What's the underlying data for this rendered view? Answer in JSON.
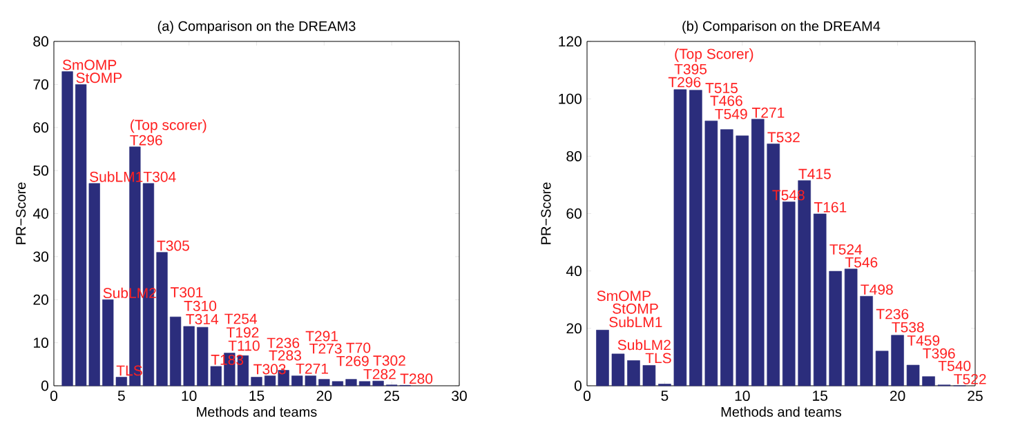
{
  "chart_data": [
    {
      "type": "bar",
      "title": "(a) Comparison on the DREAM3",
      "xlabel": "Methods and teams",
      "ylabel": "PR−Score",
      "color": "#2b2d7c",
      "x": [
        1,
        2,
        3,
        4,
        5,
        6,
        7,
        8,
        9,
        10,
        11,
        12,
        13,
        14,
        15,
        16,
        17,
        18,
        19,
        20,
        21,
        22,
        23,
        24,
        25,
        26
      ],
      "values": [
        73,
        70,
        47,
        20,
        2,
        55.5,
        47,
        31,
        16,
        13.8,
        13.6,
        4.5,
        7.6,
        7,
        2,
        2.3,
        3.6,
        2.3,
        2.3,
        1.5,
        1,
        1.5,
        1,
        1.1,
        0.2,
        0.1
      ],
      "xlim": [
        0,
        30
      ],
      "ylim": [
        0,
        80
      ],
      "xticks": [
        0,
        5,
        10,
        15,
        20,
        25,
        30
      ],
      "yticks": [
        0,
        10,
        20,
        30,
        40,
        50,
        60,
        70,
        80
      ],
      "annotations": [
        {
          "text": "SmOMP",
          "x": 1,
          "y": 73
        },
        {
          "text": "StOMP",
          "x": 2,
          "y": 70
        },
        {
          "text": "SubLM1",
          "x": 3,
          "y": 47
        },
        {
          "text": "SubLM2",
          "x": 4,
          "y": 20
        },
        {
          "text": "TLS",
          "x": 5,
          "y": 2
        },
        {
          "text": "T296",
          "x": 6,
          "y": 55.5
        },
        {
          "text": "(Top scorer)",
          "x": 6,
          "y": 55.5
        },
        {
          "text": "T304",
          "x": 7,
          "y": 47
        },
        {
          "text": "T305",
          "x": 8,
          "y": 31
        },
        {
          "text": "T301",
          "x": 9,
          "y": 16
        },
        {
          "text": "T310",
          "x": 10,
          "y": 13.8
        },
        {
          "text": "T314",
          "x": 11,
          "y": 13.6
        },
        {
          "text": "T183",
          "x": 12,
          "y": 4.5
        },
        {
          "text": "T254",
          "x": 13,
          "y": 7.6
        },
        {
          "text": "T192",
          "x": 14,
          "y": 7
        },
        {
          "text": "T110",
          "x": 15,
          "y": 2
        },
        {
          "text": "T303",
          "x": 16,
          "y": 2.3
        },
        {
          "text": "T236",
          "x": 17,
          "y": 3.6
        },
        {
          "text": "T283",
          "x": 18,
          "y": 2.3
        },
        {
          "text": "T291",
          "x": 19,
          "y": 2.3
        },
        {
          "text": "T271",
          "x": 20,
          "y": 1.5
        },
        {
          "text": "T273",
          "x": 21,
          "y": 1
        },
        {
          "text": "T70",
          "x": 22,
          "y": 1.5
        },
        {
          "text": "T269",
          "x": 23,
          "y": 1
        },
        {
          "text": "T302",
          "x": 24,
          "y": 1.1
        },
        {
          "text": "T282",
          "x": 25,
          "y": 0.2
        },
        {
          "text": "T280",
          "x": 26,
          "y": 0.1
        }
      ]
    },
    {
      "type": "bar",
      "title": "(b) Comparison on the DREAM4",
      "xlabel": "Methods and teams",
      "ylabel": "PR−Score",
      "color": "#2b2d7c",
      "x": [
        1,
        2,
        3,
        4,
        5,
        6,
        7,
        8,
        9,
        10,
        11,
        12,
        13,
        14,
        15,
        16,
        17,
        18,
        19,
        20,
        21,
        22,
        23,
        24
      ],
      "values": [
        19.4,
        11.1,
        8.8,
        7.1,
        0.6,
        103.2,
        103,
        92.3,
        89.3,
        87.1,
        92.9,
        84.3,
        64.1,
        71.5,
        59.9,
        39.9,
        40.7,
        31.2,
        12.1,
        17.6,
        7.2,
        3.2,
        0.3,
        0
      ],
      "xlim": [
        0,
        25
      ],
      "ylim": [
        0,
        120
      ],
      "xticks": [
        0,
        5,
        10,
        15,
        20,
        25
      ],
      "yticks": [
        0,
        20,
        40,
        60,
        80,
        100,
        120
      ],
      "annotations": [
        {
          "text": "SmOMP",
          "x": 1,
          "y": 19.4
        },
        {
          "text": "StOMP",
          "x": 2,
          "y": 11.1
        },
        {
          "text": "SubLM1",
          "x": 3,
          "y": 8.8
        },
        {
          "text": "SubLM2",
          "x": 4,
          "y": 7.1
        },
        {
          "text": "TLS",
          "x": 5,
          "y": 0.6
        },
        {
          "text": "T395",
          "x": 6,
          "y": 103.2
        },
        {
          "text": "(Top Scorer)",
          "x": 6,
          "y": 103.2
        },
        {
          "text": "T296",
          "x": 7,
          "y": 103
        },
        {
          "text": "T515",
          "x": 8,
          "y": 92.3
        },
        {
          "text": "T466",
          "x": 9,
          "y": 89.3
        },
        {
          "text": "T549",
          "x": 10,
          "y": 87.1
        },
        {
          "text": "T271",
          "x": 11,
          "y": 92.9
        },
        {
          "text": "T532",
          "x": 12,
          "y": 84.3
        },
        {
          "text": "T548",
          "x": 13,
          "y": 64.1
        },
        {
          "text": "T415",
          "x": 14,
          "y": 71.5
        },
        {
          "text": "T161",
          "x": 15,
          "y": 59.9
        },
        {
          "text": "T524",
          "x": 16,
          "y": 39.9
        },
        {
          "text": "T546",
          "x": 17,
          "y": 40.7
        },
        {
          "text": "T498",
          "x": 18,
          "y": 31.2
        },
        {
          "text": "T236",
          "x": 19,
          "y": 12.1
        },
        {
          "text": "T538",
          "x": 20,
          "y": 17.6
        },
        {
          "text": "T459",
          "x": 21,
          "y": 7.2
        },
        {
          "text": "T396",
          "x": 22,
          "y": 3.2
        },
        {
          "text": "T540",
          "x": 23,
          "y": 0.3
        },
        {
          "text": "T522",
          "x": 24,
          "y": 0
        }
      ]
    }
  ]
}
